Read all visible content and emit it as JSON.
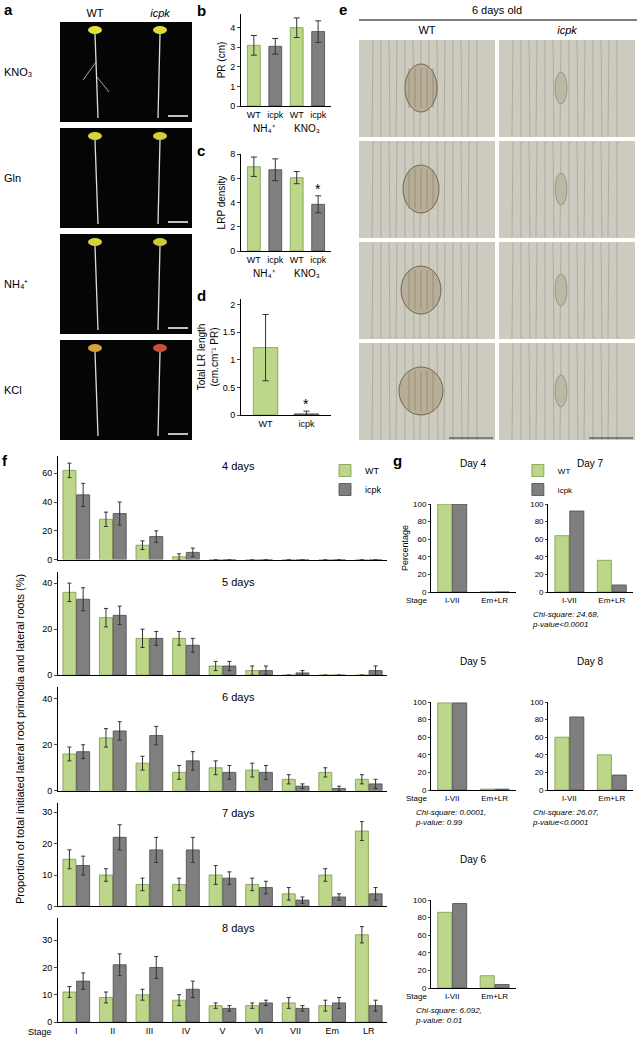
{
  "panel_a": {
    "panel": "a",
    "columns": [
      "WT",
      "icpk"
    ],
    "rows": [
      "KNO₃",
      "Gln",
      "NH₄⁺",
      "KCl"
    ]
  },
  "panel_e": {
    "panel": "e",
    "title": "6 days old",
    "columns": [
      "WT",
      "icpk"
    ]
  },
  "chart_data": [
    {
      "panel": "b",
      "type": "bar",
      "y_label": "PR (cm)",
      "categories": [
        "WT",
        "icpk",
        "WT",
        "icpk"
      ],
      "groups": [
        {
          "name": "NH₄⁺",
          "categories": [
            0,
            1
          ]
        },
        {
          "name": "KNO₃",
          "categories": [
            2,
            3
          ]
        }
      ],
      "values": [
        3.1,
        3.05,
        4.0,
        3.8
      ],
      "errors": [
        0.5,
        0.4,
        0.5,
        0.55
      ],
      "colors": [
        "#bcd68a",
        "#7f7f7f",
        "#bcd68a",
        "#7f7f7f"
      ],
      "ylim": [
        0,
        4.7
      ],
      "yticks": [
        0,
        1,
        2,
        3,
        4
      ],
      "grid": false
    },
    {
      "panel": "c",
      "type": "bar",
      "y_label": "LRP density",
      "categories": [
        "WT",
        "icpk",
        "WT",
        "icpk"
      ],
      "groups": [
        {
          "name": "NH₄⁺",
          "categories": [
            0,
            1
          ]
        },
        {
          "name": "KNO₃",
          "categories": [
            2,
            3
          ]
        }
      ],
      "values": [
        6.95,
        6.7,
        6.05,
        3.85
      ],
      "errors": [
        0.8,
        0.9,
        0.5,
        0.7
      ],
      "colors": [
        "#bcd68a",
        "#7f7f7f",
        "#bcd68a",
        "#7f7f7f"
      ],
      "annotations": [
        {
          "x": 3,
          "text": "*"
        }
      ],
      "ylim": [
        0,
        8
      ],
      "yticks": [
        0,
        2,
        4,
        6,
        8
      ],
      "grid": false
    },
    {
      "panel": "d",
      "type": "bar",
      "y_label": [
        "Total LR length",
        "(cm.cm⁻¹ PR)"
      ],
      "categories": [
        "WT",
        "icpk"
      ],
      "values": [
        1.22,
        0.02
      ],
      "errors": [
        0.6,
        0.05
      ],
      "colors": [
        "#bcd68a",
        "#7f7f7f"
      ],
      "annotations": [
        {
          "x": 1,
          "text": "*"
        }
      ],
      "ylim": [
        0,
        2.1
      ],
      "yticks": [
        0,
        0.5,
        1,
        1.5,
        2
      ],
      "grid": false
    },
    {
      "panel": "f",
      "type": "bar",
      "y_label": "Proportion of total initiated lateral root primodia and lateral roots (%)",
      "x_label": "Stage",
      "legend": "top right",
      "grid": false,
      "categories": [
        "I",
        "II",
        "III",
        "IV",
        "V",
        "VI",
        "VII",
        "Em",
        "LR"
      ],
      "subplots": [
        {
          "title": "4 days",
          "ylim": [
            0,
            72
          ],
          "yticks": [
            0,
            20,
            40,
            60
          ],
          "series": [
            {
              "name": "WT",
              "color": "#bcd68a",
              "values": [
                62,
                28,
                10,
                2,
                0,
                0,
                0,
                0,
                0
              ],
              "errors": [
                5,
                5,
                3,
                2,
                0,
                0,
                0,
                0,
                0
              ]
            },
            {
              "name": "icpk",
              "color": "#7f7f7f",
              "values": [
                45,
                32,
                16,
                5,
                0,
                0,
                0,
                0,
                0
              ],
              "errors": [
                8,
                8,
                4,
                3,
                0,
                0,
                0,
                0,
                0
              ]
            }
          ]
        },
        {
          "title": "5 days",
          "ylim": [
            0,
            45
          ],
          "yticks": [
            0,
            20,
            40
          ],
          "series": [
            {
              "name": "WT",
              "color": "#bcd68a",
              "values": [
                36,
                25,
                16,
                16,
                4,
                2,
                0,
                0,
                0
              ],
              "errors": [
                4,
                4,
                4,
                3,
                2,
                2,
                0,
                0,
                0
              ]
            },
            {
              "name": "icpk",
              "color": "#7f7f7f",
              "values": [
                33,
                26,
                16,
                13,
                4,
                2,
                1,
                0,
                2
              ],
              "errors": [
                5,
                4,
                3,
                3,
                2,
                2,
                1,
                0,
                2
              ]
            }
          ]
        },
        {
          "title": "6 days",
          "ylim": [
            0,
            45
          ],
          "yticks": [
            0,
            20,
            40
          ],
          "series": [
            {
              "name": "WT",
              "color": "#bcd68a",
              "values": [
                16,
                23,
                12,
                8,
                10,
                9,
                5,
                8,
                5
              ],
              "errors": [
                3,
                4,
                3,
                3,
                3,
                3,
                2,
                2,
                2
              ]
            },
            {
              "name": "icpk",
              "color": "#7f7f7f",
              "values": [
                17,
                26,
                24,
                13,
                8,
                8,
                2,
                1,
                3
              ],
              "errors": [
                3,
                4,
                4,
                4,
                3,
                3,
                1,
                1,
                2
              ]
            }
          ]
        },
        {
          "title": "7 days",
          "ylim": [
            0,
            33
          ],
          "yticks": [
            0,
            10,
            20,
            30
          ],
          "series": [
            {
              "name": "WT",
              "color": "#bcd68a",
              "values": [
                15,
                10,
                7,
                7,
                10,
                7,
                4,
                10,
                24
              ],
              "errors": [
                3,
                2,
                2,
                2,
                3,
                2,
                2,
                2,
                3
              ]
            },
            {
              "name": "icpk",
              "color": "#7f7f7f",
              "values": [
                13,
                22,
                18,
                18,
                9,
                6,
                2,
                3,
                4
              ],
              "errors": [
                3,
                4,
                4,
                4,
                2,
                2,
                1,
                1,
                2
              ]
            }
          ]
        },
        {
          "title": "8 days",
          "ylim": [
            0,
            38
          ],
          "yticks": [
            0,
            10,
            20,
            30
          ],
          "series": [
            {
              "name": "WT",
              "color": "#bcd68a",
              "values": [
                11,
                9,
                10,
                8,
                6,
                6,
                7,
                6,
                32
              ],
              "errors": [
                2,
                2,
                2,
                2,
                1,
                1,
                2,
                2,
                3
              ]
            },
            {
              "name": "icpk",
              "color": "#7f7f7f",
              "values": [
                15,
                21,
                20,
                12,
                5,
                7,
                5,
                7,
                6
              ],
              "errors": [
                3,
                4,
                4,
                3,
                1,
                1,
                1,
                2,
                2
              ]
            }
          ]
        }
      ]
    },
    {
      "panel": "g",
      "type": "bar",
      "legend": "right",
      "grid": false,
      "categories": [
        "I-VII",
        "Em+LR"
      ],
      "subplots": [
        {
          "title": "Day 4",
          "y_label": "Percentage",
          "x_label": "Stage",
          "ylim": [
            0,
            100
          ],
          "yticks": [
            0,
            20,
            40,
            60,
            80,
            100
          ],
          "series": [
            {
              "name": "WT",
              "color": "#bcd68a",
              "values": [
                100,
                0
              ]
            },
            {
              "name": "icpk",
              "color": "#7f7f7f",
              "values": [
                100,
                0
              ]
            }
          ]
        },
        {
          "title": "Day 5",
          "x_label": "Stage",
          "ylim": [
            0,
            100
          ],
          "yticks": [
            0,
            20,
            40,
            60,
            80,
            100
          ],
          "note": [
            "Chi-square: 0.0001,",
            "p-value: 0.99"
          ],
          "series": [
            {
              "name": "WT",
              "color": "#bcd68a",
              "values": [
                99,
                1
              ]
            },
            {
              "name": "icpk",
              "color": "#7f7f7f",
              "values": [
                99,
                1
              ]
            }
          ]
        },
        {
          "title": "Day 6",
          "x_label": "Stage",
          "ylim": [
            0,
            100
          ],
          "yticks": [
            0,
            20,
            40,
            60,
            80,
            100
          ],
          "note": [
            "Chi-square: 6.092,",
            "p-value: 0.01"
          ],
          "series": [
            {
              "name": "WT",
              "color": "#bcd68a",
              "values": [
                86,
                14
              ]
            },
            {
              "name": "icpk",
              "color": "#7f7f7f",
              "values": [
                96,
                4
              ]
            }
          ]
        },
        {
          "title": "Day 7",
          "ylim": [
            0,
            100
          ],
          "yticks": [
            0,
            20,
            40,
            60,
            80,
            100
          ],
          "note": [
            "Chi-square: 24.68,",
            "p-value<0.0001"
          ],
          "series": [
            {
              "name": "WT",
              "color": "#bcd68a",
              "values": [
                64,
                36
              ]
            },
            {
              "name": "icpk",
              "color": "#7f7f7f",
              "values": [
                92,
                8
              ]
            }
          ]
        },
        {
          "title": "Day 8",
          "ylim": [
            0,
            100
          ],
          "yticks": [
            0,
            20,
            40,
            60,
            80,
            100
          ],
          "note": [
            "Chi-square: 26.07,",
            "p-value<0.0001"
          ],
          "series": [
            {
              "name": "WT",
              "color": "#bcd68a",
              "values": [
                60,
                40
              ]
            },
            {
              "name": "icpk",
              "color": "#7f7f7f",
              "values": [
                83,
                17
              ]
            }
          ]
        }
      ]
    }
  ]
}
